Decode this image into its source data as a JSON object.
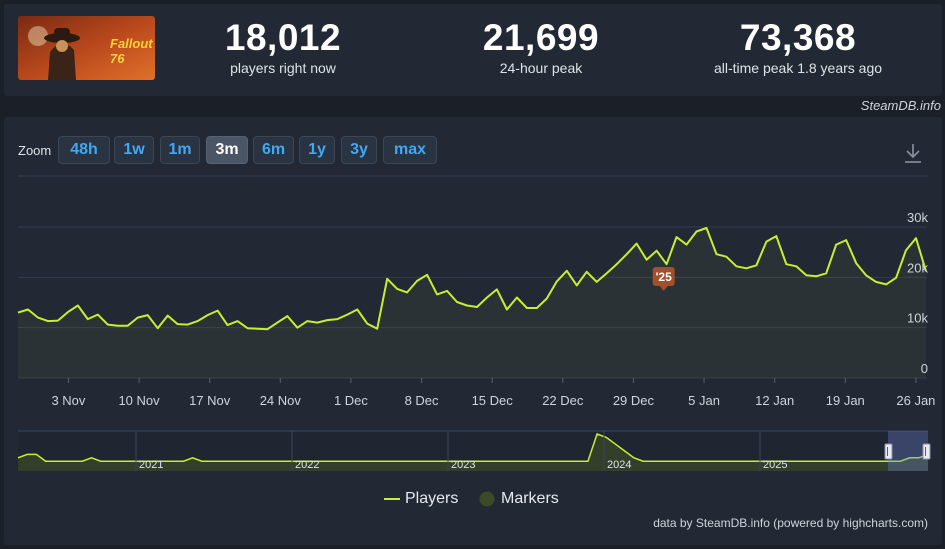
{
  "header": {
    "stats": [
      {
        "value": "18,012",
        "label": "players right now"
      },
      {
        "value": "21,699",
        "label": "24-hour peak"
      },
      {
        "value": "73,368",
        "label": "all-time peak 1.8 years ago"
      }
    ],
    "brand": "SteamDB.info",
    "capsule_text": "Fallout 76"
  },
  "toolbar": {
    "zoom_label": "Zoom",
    "zoom_options": [
      "48h",
      "1w",
      "1m",
      "3m",
      "6m",
      "1y",
      "3y",
      "max"
    ],
    "active_zoom": "3m"
  },
  "legend": {
    "players": "Players",
    "markers": "Markers"
  },
  "credits": "data by SteamDB.info (powered by highcharts.com)",
  "colors": {
    "line": "#c5f032",
    "marker_fill": "#3c4a28",
    "background": "#222935",
    "marker_badge": "#a0502a",
    "active_zoom_bg": "#4a5566"
  },
  "chart_data": {
    "type": "line",
    "x_start": "2024-10-29",
    "x_end": "2025-01-27",
    "x_ticks": [
      "3 Nov",
      "10 Nov",
      "17 Nov",
      "24 Nov",
      "1 Dec",
      "8 Dec",
      "15 Dec",
      "22 Dec",
      "29 Dec",
      "5 Jan",
      "12 Jan",
      "19 Jan",
      "26 Jan"
    ],
    "y_ticks": [
      "0",
      "10k",
      "20k",
      "30k"
    ],
    "ylim": [
      0,
      30000
    ],
    "grid": true,
    "series": [
      {
        "name": "Players",
        "values": [
          13000,
          13600,
          12000,
          11300,
          11400,
          13100,
          14400,
          11700,
          12600,
          10600,
          10400,
          10400,
          12000,
          12500,
          9900,
          12400,
          10700,
          10600,
          11300,
          12500,
          13400,
          10500,
          11300,
          9900,
          9800,
          9700,
          11000,
          12300,
          10000,
          11300,
          11000,
          11500,
          11700,
          12600,
          13600,
          10800,
          9800,
          19700,
          17700,
          17000,
          19300,
          20500,
          16600,
          17300,
          15100,
          14400,
          14100,
          16000,
          17600,
          13600,
          16000,
          13900,
          13900,
          15800,
          19200,
          21300,
          18400,
          21100,
          19100,
          20800,
          22600,
          24600,
          26700,
          23500,
          25300,
          22600,
          28000,
          26500,
          29100,
          29800,
          24600,
          24100,
          22200,
          21800,
          22400,
          27100,
          28200,
          22600,
          22200,
          20400,
          20200,
          20800,
          26500,
          27400,
          22800,
          20400,
          19100,
          18600,
          19900,
          25400,
          27800,
          21200
        ]
      },
      {
        "name": "Markers",
        "labels": [
          "'25"
        ],
        "x": [
          "2025-01-01"
        ]
      }
    ],
    "navigator": {
      "year_labels": [
        "2021",
        "2022",
        "2023",
        "2024",
        "2025"
      ],
      "values": [
        3,
        4,
        4,
        2,
        2,
        2,
        2,
        2,
        3,
        2,
        2,
        2,
        2,
        2,
        2,
        2,
        2,
        2,
        2,
        3,
        2,
        2,
        2,
        2,
        2,
        2,
        2,
        2,
        2,
        2,
        2,
        2,
        2,
        2,
        2,
        2,
        2,
        2,
        2,
        2,
        2,
        2,
        2,
        2,
        2,
        2,
        2,
        2,
        2,
        2,
        2,
        2,
        2,
        2,
        2,
        2,
        2,
        2,
        2,
        2,
        2,
        2,
        2,
        10,
        9,
        7,
        5,
        3,
        2,
        2,
        2,
        2,
        2,
        2,
        2,
        2,
        2,
        2,
        2,
        2,
        2,
        2,
        2,
        2,
        2,
        2,
        2,
        2,
        2,
        2,
        2,
        2,
        2,
        2,
        2,
        2,
        2,
        3,
        3,
        4
      ]
    }
  }
}
